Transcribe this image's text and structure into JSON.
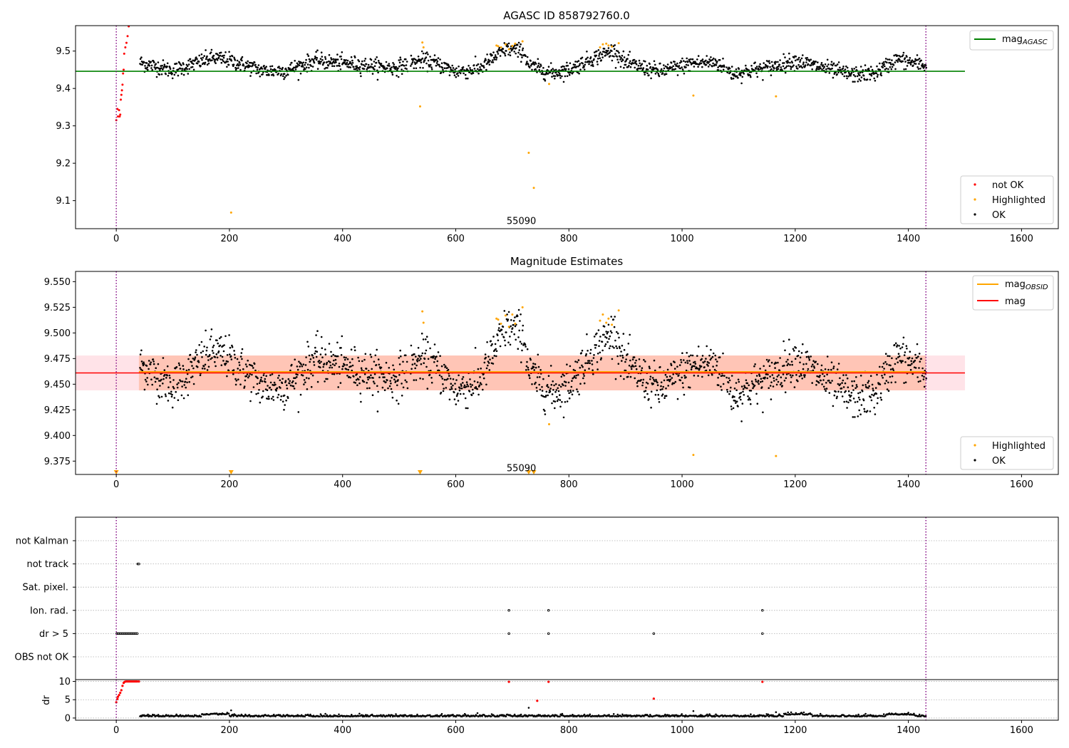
{
  "chart_data": [
    {
      "type": "scatter",
      "title": "AGASC ID 858792760.0",
      "xlim": [
        -72,
        1665
      ],
      "ylim": [
        9.025,
        9.568
      ],
      "xticks": [
        0,
        200,
        400,
        600,
        800,
        1000,
        1200,
        1400,
        1600
      ],
      "yticks": [
        9.1,
        9.2,
        9.3,
        9.4,
        9.5
      ],
      "vlines": [
        0,
        1431
      ],
      "hline": {
        "y": 9.446,
        "x": [
          -72,
          1500
        ],
        "color": "#008000"
      },
      "annotation": {
        "text": "55090",
        "x": 716,
        "y": 9.045
      },
      "legend_top": {
        "position": "upper right",
        "entries": [
          {
            "label": "mag",
            "sub": "AGASC",
            "color": "#008000"
          }
        ]
      },
      "legend_bottom": {
        "position": "lower right",
        "entries": [
          {
            "label": "not OK",
            "color": "#ff0000"
          },
          {
            "label": "Highlighted",
            "color": "#ffa500"
          },
          {
            "label": "OK",
            "color": "#000000"
          }
        ]
      },
      "highlighted_points": [
        [
          541,
          9.523
        ],
        [
          543,
          9.51
        ],
        [
          537,
          9.352
        ],
        [
          203,
          9.068
        ],
        [
          672,
          9.515
        ],
        [
          675,
          9.513
        ],
        [
          680,
          9.51
        ],
        [
          688,
          9.518
        ],
        [
          694,
          9.505
        ],
        [
          700,
          9.514
        ],
        [
          705,
          9.52
        ],
        [
          718,
          9.526
        ],
        [
          729,
          9.228
        ],
        [
          738,
          9.134
        ],
        [
          765,
          9.412
        ],
        [
          855,
          9.51
        ],
        [
          860,
          9.518
        ],
        [
          866,
          9.52
        ],
        [
          870,
          9.515
        ],
        [
          876,
          9.512
        ],
        [
          888,
          9.521
        ],
        [
          1020,
          9.381
        ],
        [
          1166,
          9.379
        ]
      ],
      "not_ok_points": [
        [
          0,
          9.315
        ],
        [
          2,
          9.345
        ],
        [
          3,
          9.325
        ],
        [
          5,
          9.342
        ],
        [
          6,
          9.325
        ],
        [
          7,
          9.33
        ],
        [
          8,
          9.37
        ],
        [
          9,
          9.383
        ],
        [
          10,
          9.395
        ],
        [
          11,
          9.41
        ],
        [
          12,
          9.44
        ],
        [
          13,
          9.45
        ],
        [
          14,
          9.493
        ],
        [
          16,
          9.51
        ],
        [
          18,
          9.522
        ],
        [
          20,
          9.54
        ],
        [
          22,
          9.566
        ]
      ]
    },
    {
      "type": "scatter",
      "title": "Magnitude Estimates",
      "xlim": [
        -72,
        1665
      ],
      "ylim": [
        9.362,
        9.56
      ],
      "xticks": [
        0,
        200,
        400,
        600,
        800,
        1000,
        1200,
        1400,
        1600
      ],
      "yticks": [
        9.375,
        9.4,
        9.425,
        9.45,
        9.475,
        9.5,
        9.525,
        9.55
      ],
      "vlines": [
        0,
        1431
      ],
      "mag_line": {
        "y": 9.461,
        "x": [
          -72,
          1500
        ],
        "color": "#ff0000"
      },
      "mag_obsid": {
        "y": 9.462,
        "band": [
          9.444,
          9.478
        ],
        "color": "#ffa500"
      },
      "annotation": {
        "text": "55090",
        "x": 716,
        "y": 9.368
      },
      "legend_top": {
        "position": "upper right",
        "entries": [
          {
            "label": "mag",
            "sub": "OBSID",
            "color": "#ffa500"
          },
          {
            "label": "mag",
            "sub": "",
            "color": "#ff0000"
          }
        ]
      },
      "legend_bottom": {
        "position": "lower right",
        "entries": [
          {
            "label": "Highlighted",
            "color": "#ffa500"
          },
          {
            "label": "OK",
            "color": "#000000"
          }
        ]
      },
      "highlighted_points": [
        [
          541,
          9.521
        ],
        [
          543,
          9.51
        ],
        [
          672,
          9.514
        ],
        [
          675,
          9.513
        ],
        [
          680,
          9.509
        ],
        [
          688,
          9.517
        ],
        [
          694,
          9.506
        ],
        [
          700,
          9.518
        ],
        [
          705,
          9.509
        ],
        [
          718,
          9.525
        ],
        [
          765,
          9.411
        ],
        [
          855,
          9.512
        ],
        [
          860,
          9.518
        ],
        [
          866,
          9.51
        ],
        [
          870,
          9.514
        ],
        [
          876,
          9.508
        ],
        [
          888,
          9.522
        ],
        [
          1020,
          9.381
        ],
        [
          1166,
          9.38
        ]
      ],
      "triangle_markers": [
        0,
        203,
        537,
        729,
        738
      ]
    },
    {
      "type": "scatter",
      "title": "",
      "xlim": [
        -72,
        1665
      ],
      "categories": [
        "not Kalman",
        "not track",
        "Sat. pixel.",
        "Ion. rad.",
        "dr > 5",
        "OBS not OK"
      ],
      "vlines": [
        0,
        1431
      ],
      "flags": {
        "not track": [
          38,
          40
        ],
        "Ion. rad.": [
          694,
          764,
          1142
        ],
        "dr > 5": [
          1,
          3,
          5,
          7,
          9,
          11,
          13,
          15,
          17,
          19,
          21,
          23,
          25,
          27,
          29,
          31,
          33,
          35,
          37,
          694,
          764,
          950,
          1142
        ]
      }
    },
    {
      "type": "scatter",
      "title": "",
      "ylabel": "dr",
      "xlim": [
        -72,
        1665
      ],
      "ylim": [
        -0.6,
        10.5
      ],
      "xticks": [
        0,
        200,
        400,
        600,
        800,
        1000,
        1200,
        1400,
        1600
      ],
      "yticks": [
        0,
        5,
        10
      ],
      "vlines": [
        0,
        1431
      ],
      "red_points": [
        [
          0,
          4.3
        ],
        [
          2,
          5.2
        ],
        [
          3,
          5.8
        ],
        [
          5,
          6.3
        ],
        [
          7,
          6.9
        ],
        [
          9,
          7.6
        ],
        [
          11,
          8.8
        ],
        [
          13,
          9.6
        ],
        [
          15,
          9.9
        ],
        [
          17,
          10
        ],
        [
          19,
          10
        ],
        [
          21,
          10
        ],
        [
          23,
          10
        ],
        [
          25,
          10
        ],
        [
          27,
          10
        ],
        [
          29,
          10
        ],
        [
          31,
          10
        ],
        [
          33,
          10
        ],
        [
          35,
          10
        ],
        [
          37,
          10
        ],
        [
          40,
          10
        ],
        [
          694,
          9.9
        ],
        [
          764,
          9.9
        ],
        [
          744,
          4.7
        ],
        [
          950,
          5.3
        ],
        [
          1142,
          9.9
        ]
      ]
    }
  ]
}
